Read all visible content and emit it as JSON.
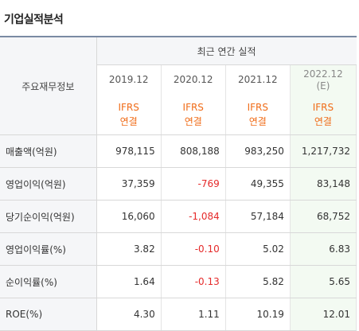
{
  "section_title": "기업실적분석",
  "table": {
    "label_header": "주요재무정보",
    "group_header": "최근 연간 실적",
    "columns": [
      {
        "year": "2019.12",
        "estimate": "",
        "standard_line1": "IFRS",
        "standard_line2": "연결"
      },
      {
        "year": "2020.12",
        "estimate": "",
        "standard_line1": "IFRS",
        "standard_line2": "연결"
      },
      {
        "year": "2021.12",
        "estimate": "",
        "standard_line1": "IFRS",
        "standard_line2": "연결"
      },
      {
        "year": "2022.12",
        "estimate": "(E)",
        "standard_line1": "IFRS",
        "standard_line2": "연결"
      }
    ],
    "rows": [
      {
        "label": "매출액(억원)",
        "values": [
          "978,115",
          "808,188",
          "983,250",
          "1,217,732"
        ]
      },
      {
        "label": "영업이익(억원)",
        "values": [
          "37,359",
          "-769",
          "49,355",
          "83,148"
        ]
      },
      {
        "label": "당기순이익(억원)",
        "values": [
          "16,060",
          "-1,084",
          "57,184",
          "68,752"
        ]
      },
      {
        "label": "영업이익률(%)",
        "values": [
          "3.82",
          "-0.10",
          "5.02",
          "6.83"
        ]
      },
      {
        "label": "순이익률(%)",
        "values": [
          "1.64",
          "-0.13",
          "5.82",
          "5.65"
        ]
      },
      {
        "label": "ROE(%)",
        "values": [
          "4.30",
          "1.11",
          "10.19",
          "12.01"
        ]
      }
    ]
  },
  "colors": {
    "negative": "#e52a2a",
    "standard_label": "#f06c18",
    "estimate_background": "#f3faf2",
    "header_background": "#f5f6f8"
  }
}
